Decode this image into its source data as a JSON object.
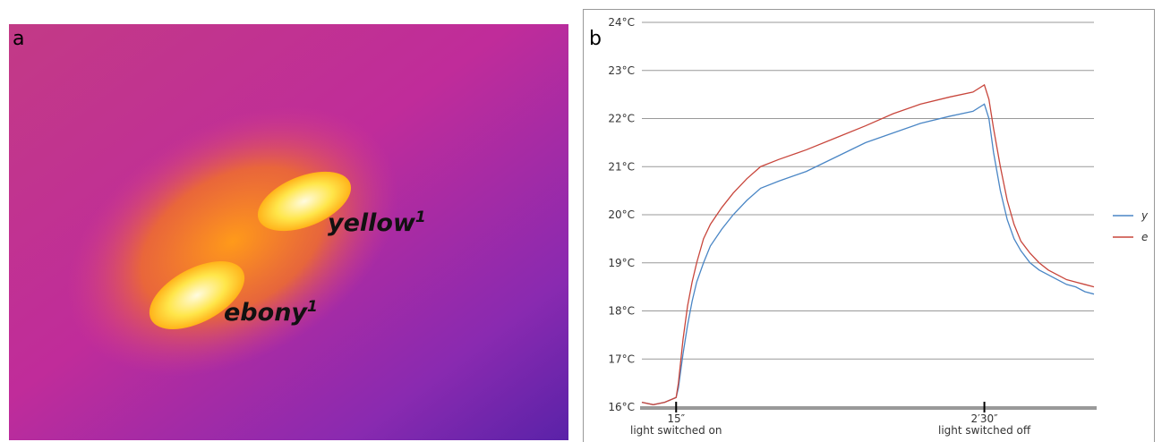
{
  "image": {
    "label": "a",
    "annotations": [
      {
        "text": "yellow",
        "sup": "1"
      },
      {
        "text": "ebony",
        "sup": "1"
      }
    ]
  },
  "chart_data": {
    "type": "line",
    "label": "b",
    "x": [
      0,
      5,
      10,
      15,
      16,
      18,
      20,
      22,
      24,
      27,
      30,
      35,
      40,
      46,
      52,
      60,
      72,
      85,
      98,
      110,
      122,
      135,
      145,
      150,
      152,
      154,
      157,
      160,
      163,
      166,
      170,
      174,
      178,
      182,
      186,
      190,
      194,
      198
    ],
    "series": [
      {
        "name": "y",
        "color": "#4a86c5",
        "values": [
          16.1,
          16.05,
          16.1,
          16.2,
          16.4,
          17.1,
          17.7,
          18.2,
          18.6,
          19.0,
          19.35,
          19.7,
          20.0,
          20.3,
          20.55,
          20.7,
          20.9,
          21.2,
          21.5,
          21.7,
          21.9,
          22.05,
          22.15,
          22.3,
          22.0,
          21.3,
          20.5,
          19.9,
          19.5,
          19.25,
          19.0,
          18.85,
          18.75,
          18.65,
          18.55,
          18.5,
          18.4,
          18.35
        ]
      },
      {
        "name": "e",
        "color": "#c8463c",
        "values": [
          16.1,
          16.05,
          16.1,
          16.2,
          16.5,
          17.4,
          18.1,
          18.6,
          19.0,
          19.5,
          19.8,
          20.15,
          20.45,
          20.75,
          21.0,
          21.15,
          21.35,
          21.6,
          21.85,
          22.1,
          22.3,
          22.45,
          22.55,
          22.7,
          22.4,
          21.8,
          21.0,
          20.3,
          19.8,
          19.45,
          19.2,
          19.0,
          18.85,
          18.75,
          18.65,
          18.6,
          18.55,
          18.5
        ]
      }
    ],
    "xlim": [
      0,
      198
    ],
    "xticks": [
      {
        "value": 15,
        "label": "15″"
      },
      {
        "value": 150,
        "label": "2′30″"
      }
    ],
    "tick_notes": [
      "light switched on",
      "light switched off"
    ],
    "ylim": [
      16,
      24
    ],
    "yticks": [
      {
        "value": 16,
        "label": "16°C"
      },
      {
        "value": 17,
        "label": "17°C"
      },
      {
        "value": 18,
        "label": "18°C"
      },
      {
        "value": 19,
        "label": "19°C"
      },
      {
        "value": 20,
        "label": "20°C"
      },
      {
        "value": 21,
        "label": "21°C"
      },
      {
        "value": 22,
        "label": "22°C"
      },
      {
        "value": 23,
        "label": "23°C"
      },
      {
        "value": 24,
        "label": "24°C"
      }
    ],
    "grid": true,
    "legend": "right"
  }
}
